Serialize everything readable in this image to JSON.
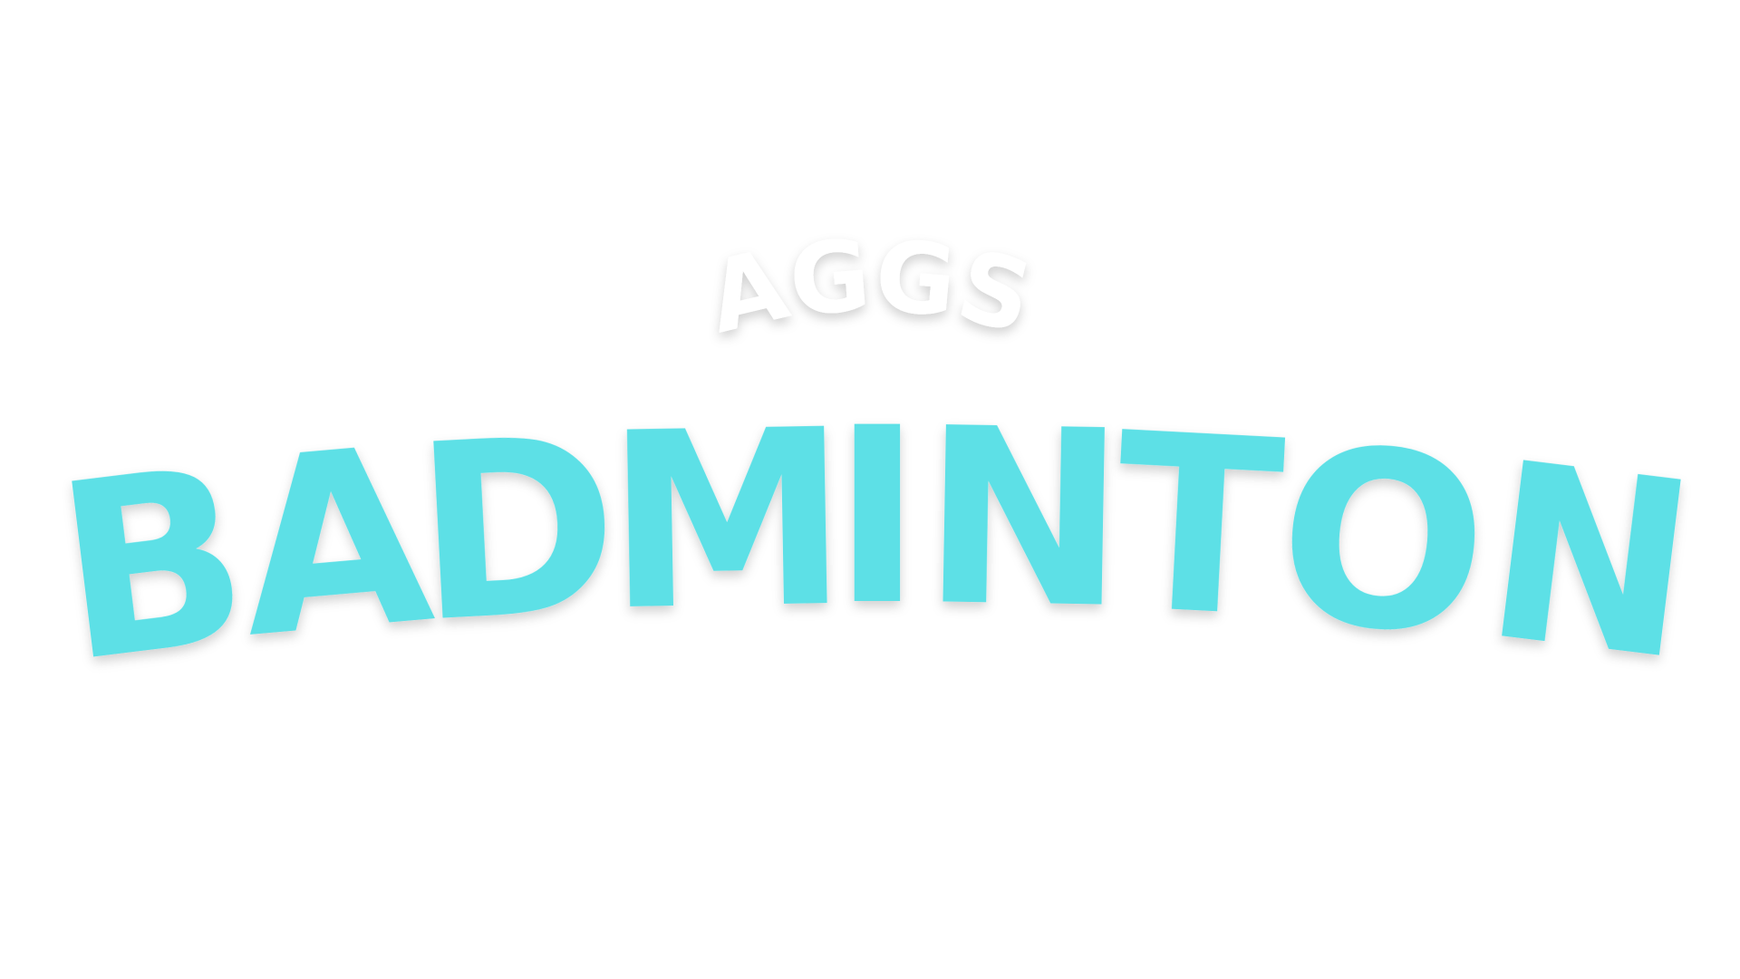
{
  "logo": {
    "top_word": "AGGS",
    "main_word": "BADMINTON",
    "colors": {
      "background": "#ffffff",
      "top_word": "#ffffff",
      "main_word": "#5de0e6"
    }
  }
}
